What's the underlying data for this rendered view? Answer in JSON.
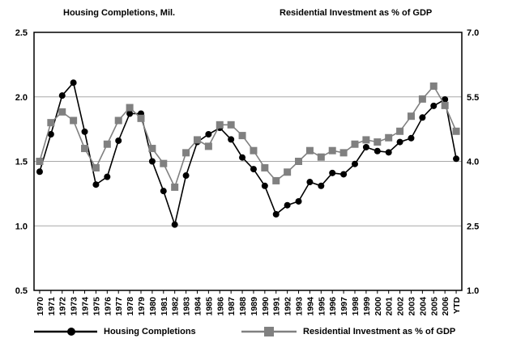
{
  "chart_data": {
    "type": "line",
    "title_left": "Housing Completions, Mil.",
    "title_right": "Residential Investment as % of GDP",
    "categories": [
      "1970",
      "1971",
      "1972",
      "1973",
      "1974",
      "1975",
      "1976",
      "1977",
      "1978",
      "1979",
      "1980",
      "1981",
      "1982",
      "1983",
      "1984",
      "1985",
      "1986",
      "1987",
      "1988",
      "1989",
      "1990",
      "1991",
      "1992",
      "1993",
      "1994",
      "1995",
      "1996",
      "1997",
      "1998",
      "1999",
      "2000",
      "2001",
      "2002",
      "2003",
      "2004",
      "2005",
      "2006",
      "YTD"
    ],
    "left_axis": {
      "ylim": [
        0.5,
        2.5
      ],
      "ticks": [
        "0.5",
        "1.0",
        "1.5",
        "2.0",
        "2.5"
      ]
    },
    "right_axis": {
      "ylim": [
        1.0,
        7.0
      ],
      "ticks": [
        "1.0",
        "2.5",
        "4.0",
        "5.5",
        "7.0"
      ]
    },
    "grid": "horizontal",
    "legend_position": "bottom",
    "series": [
      {
        "name": "Housing Completions",
        "axis": "left",
        "color": "#000000",
        "marker": "circle",
        "values": [
          1.42,
          1.71,
          2.01,
          2.11,
          1.73,
          1.32,
          1.38,
          1.66,
          1.87,
          1.87,
          1.5,
          1.27,
          1.01,
          1.39,
          1.65,
          1.71,
          1.76,
          1.67,
          1.53,
          1.44,
          1.31,
          1.09,
          1.16,
          1.19,
          1.34,
          1.31,
          1.41,
          1.4,
          1.48,
          1.61,
          1.58,
          1.57,
          1.65,
          1.68,
          1.84,
          1.93,
          1.98,
          1.52
        ]
      },
      {
        "name": "Residential Investment as % of GDP",
        "axis": "right",
        "color": "#808080",
        "marker": "square",
        "values": [
          4.0,
          4.9,
          5.15,
          4.95,
          4.3,
          3.85,
          4.4,
          4.95,
          5.25,
          5.0,
          4.3,
          3.95,
          3.4,
          4.2,
          4.5,
          4.35,
          4.85,
          4.85,
          4.6,
          4.25,
          3.85,
          3.55,
          3.75,
          4.0,
          4.25,
          4.1,
          4.25,
          4.2,
          4.4,
          4.5,
          4.45,
          4.55,
          4.7,
          5.05,
          5.45,
          5.75,
          5.3,
          4.7
        ]
      }
    ]
  }
}
